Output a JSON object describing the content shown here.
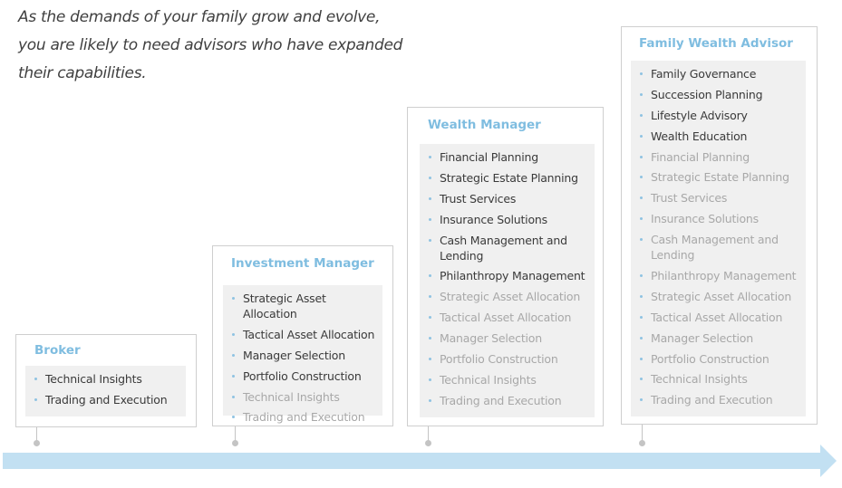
{
  "intro": {
    "lines": [
      "As the demands of your family grow and evolve,",
      "you are likely to need advisors who have expanded",
      "their capabilities."
    ]
  },
  "colors": {
    "accent": "#7fbde0",
    "arrow": "#c2e0f2",
    "panel": "#f0f0f0"
  },
  "boxes": [
    {
      "title": "Broker",
      "items": [
        {
          "label": "Technical Insights",
          "new": true
        },
        {
          "label": "Trading and Execution",
          "new": true
        }
      ]
    },
    {
      "title": "Investment Manager",
      "items": [
        {
          "label": "Strategic Asset Allocation",
          "new": true
        },
        {
          "label": "Tactical Asset Allocation",
          "new": true
        },
        {
          "label": "Manager Selection",
          "new": true
        },
        {
          "label": "Portfolio Construction",
          "new": true
        },
        {
          "label": "Technical Insights",
          "new": false
        },
        {
          "label": "Trading and Execution",
          "new": false
        }
      ]
    },
    {
      "title": "Wealth Manager",
      "items": [
        {
          "label": "Financial Planning",
          "new": true
        },
        {
          "label": "Strategic Estate Planning",
          "new": true
        },
        {
          "label": "Trust Services",
          "new": true
        },
        {
          "label": "Insurance Solutions",
          "new": true
        },
        {
          "label": "Cash Management and Lending",
          "new": true
        },
        {
          "label": "Philanthropy Management",
          "new": true
        },
        {
          "label": "Strategic Asset Allocation",
          "new": false
        },
        {
          "label": "Tactical Asset Allocation",
          "new": false
        },
        {
          "label": "Manager Selection",
          "new": false
        },
        {
          "label": "Portfolio Construction",
          "new": false
        },
        {
          "label": "Technical Insights",
          "new": false
        },
        {
          "label": "Trading and Execution",
          "new": false
        }
      ]
    },
    {
      "title": "Family Wealth Advisor",
      "items": [
        {
          "label": "Family Governance",
          "new": true
        },
        {
          "label": "Succession Planning",
          "new": true
        },
        {
          "label": "Lifestyle Advisory",
          "new": true
        },
        {
          "label": "Wealth Education",
          "new": true
        },
        {
          "label": "Financial Planning",
          "new": false
        },
        {
          "label": "Strategic Estate Planning",
          "new": false
        },
        {
          "label": "Trust Services",
          "new": false
        },
        {
          "label": "Insurance Solutions",
          "new": false
        },
        {
          "label": "Cash Management and Lending",
          "new": false
        },
        {
          "label": "Philanthropy Management",
          "new": false
        },
        {
          "label": "Strategic Asset Allocation",
          "new": false
        },
        {
          "label": "Tactical Asset Allocation",
          "new": false
        },
        {
          "label": "Manager Selection",
          "new": false
        },
        {
          "label": "Portfolio Construction",
          "new": false
        },
        {
          "label": "Technical Insights",
          "new": false
        },
        {
          "label": "Trading and Execution",
          "new": false
        }
      ]
    }
  ]
}
